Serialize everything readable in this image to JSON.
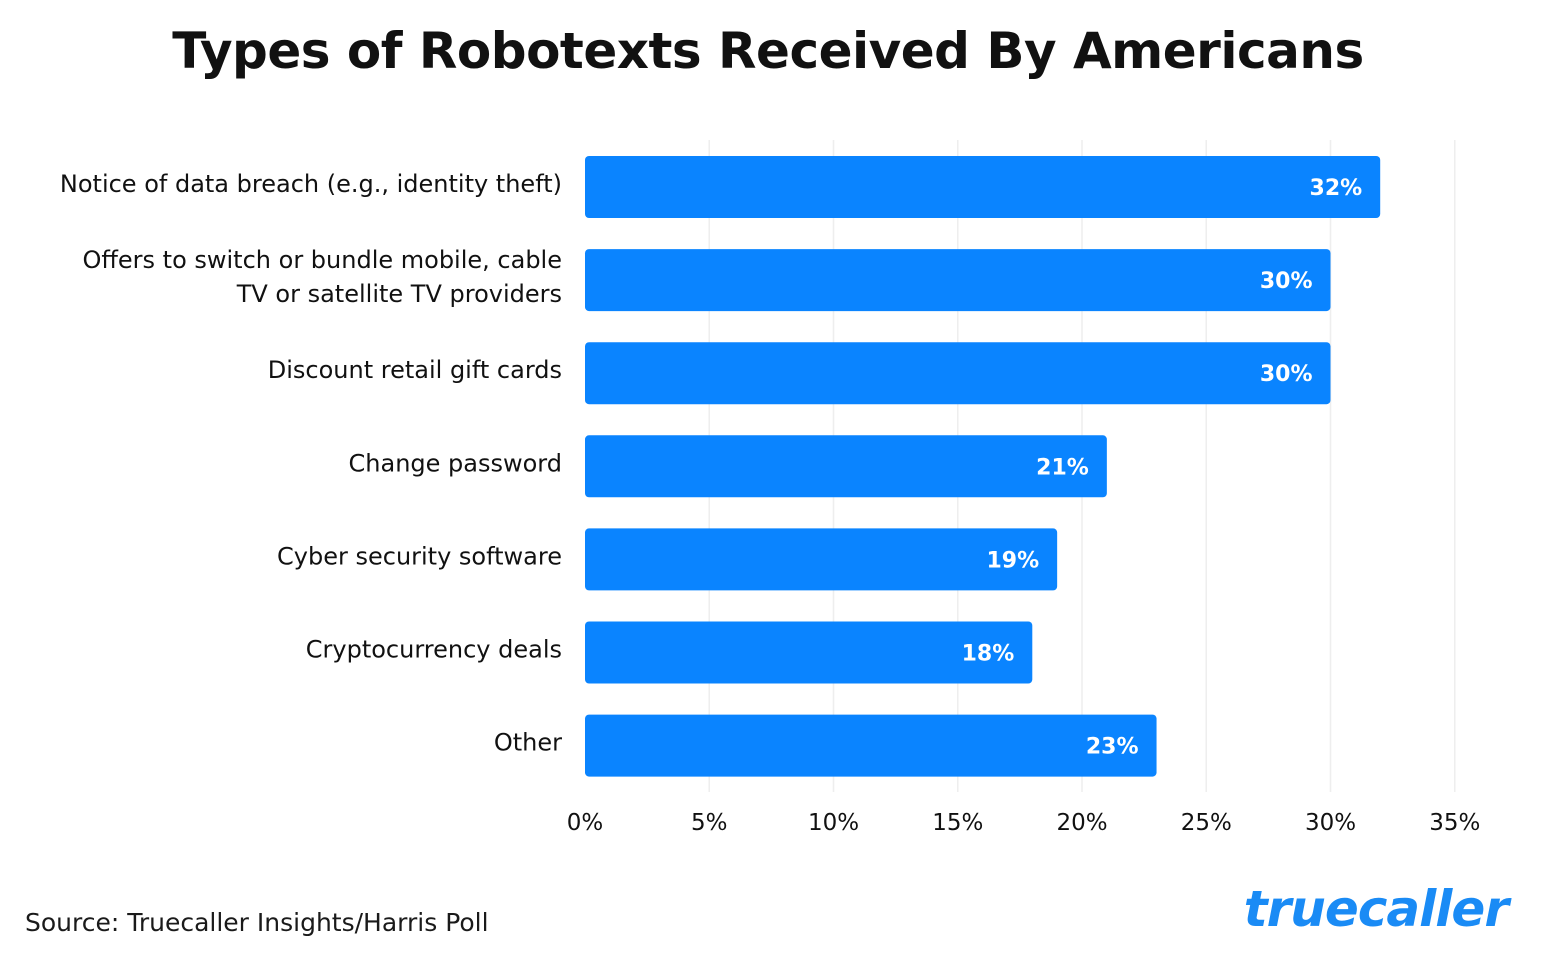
{
  "title": "Types of Robotexts Received By Americans",
  "source": "Source: Truecaller Insights/Harris Poll",
  "logo_text": "truecaller",
  "colors": {
    "bar": "#0a84ff",
    "bar_label": "#ffffff",
    "grid": "#eeeeee",
    "text": "#111111",
    "brand": "#1a8bf5"
  },
  "chart_data": {
    "type": "bar",
    "orientation": "horizontal",
    "categories": [
      [
        "Notice of data breach (e.g., identity theft)"
      ],
      [
        "Offers to switch or bundle mobile, cable",
        "TV or satellite TV providers"
      ],
      [
        "Discount retail gift cards"
      ],
      [
        "Change password"
      ],
      [
        "Cyber security software"
      ],
      [
        "Cryptocurrency deals"
      ],
      [
        "Other"
      ]
    ],
    "values": [
      32,
      30,
      30,
      21,
      19,
      18,
      23
    ],
    "value_labels": [
      "32%",
      "30%",
      "30%",
      "21%",
      "19%",
      "18%",
      "23%"
    ],
    "xlim": [
      0,
      35
    ],
    "ticks": [
      0,
      5,
      10,
      15,
      20,
      25,
      30,
      35
    ],
    "tick_labels": [
      "0%",
      "5%",
      "10%",
      "15%",
      "20%",
      "25%",
      "30%",
      "35%"
    ],
    "grid": true
  }
}
